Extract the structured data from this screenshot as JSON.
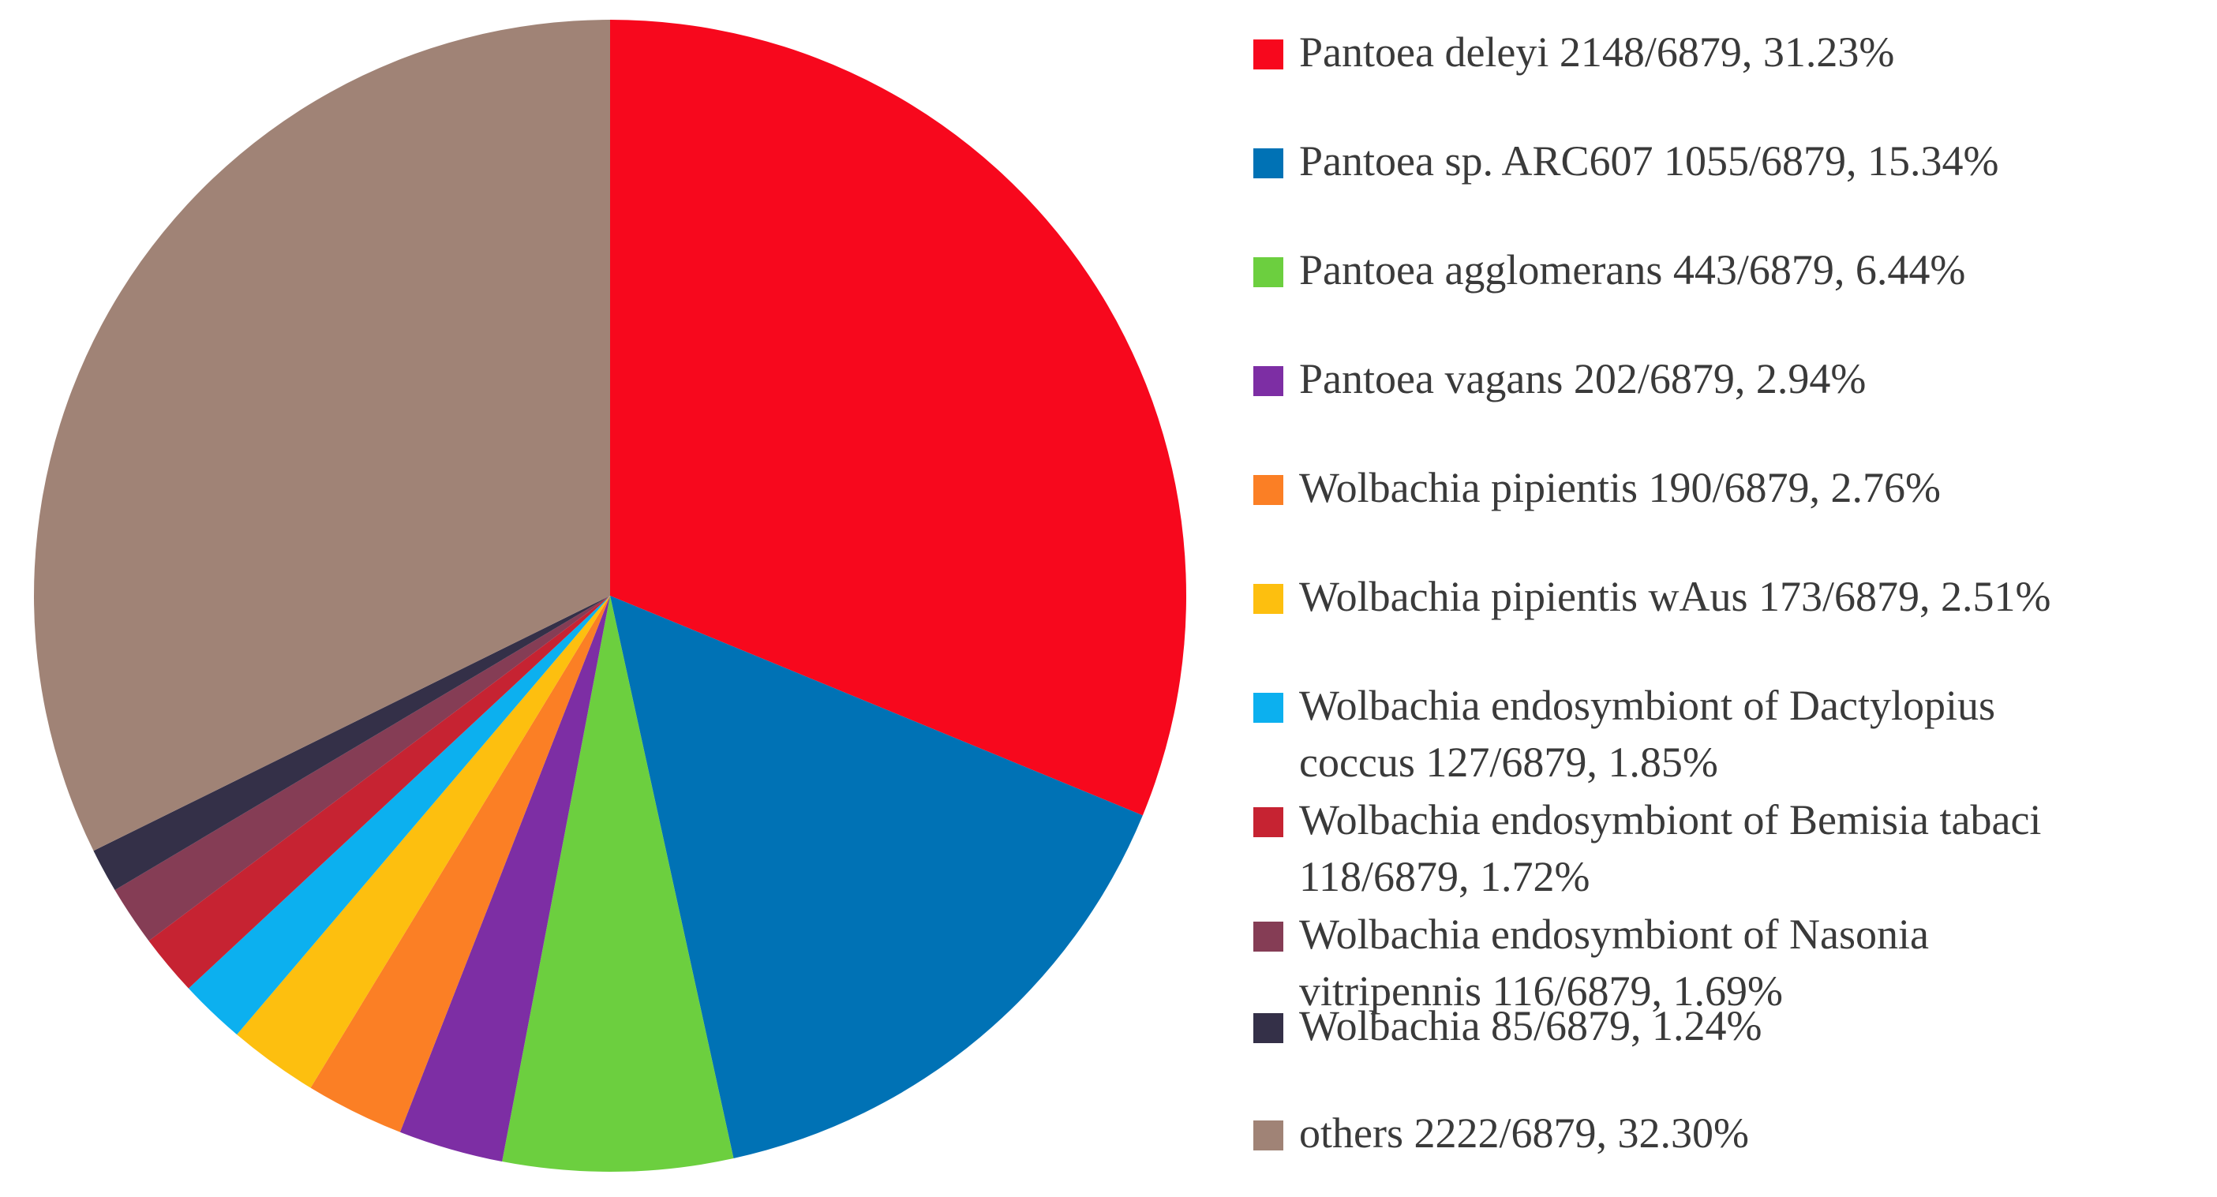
{
  "chart_data": {
    "type": "pie",
    "total": 6879,
    "start_angle_deg": 0,
    "direction": "clockwise",
    "slices": [
      {
        "label": "Pantoea deleyi",
        "count": 2148,
        "percent": 31.23,
        "color": "#f7081d",
        "legend_lines": [
          "Pantoea deleyi 2148/6879, 31.23%"
        ]
      },
      {
        "label": "Pantoea sp. ARC607",
        "count": 1055,
        "percent": 15.34,
        "color": "#0072b5",
        "legend_lines": [
          "Pantoea sp. ARC607 1055/6879, 15.34%"
        ]
      },
      {
        "label": "Pantoea agglomerans",
        "count": 443,
        "percent": 6.44,
        "color": "#6ccf3f",
        "legend_lines": [
          "Pantoea agglomerans 443/6879, 6.44%"
        ]
      },
      {
        "label": "Pantoea vagans",
        "count": 202,
        "percent": 2.94,
        "color": "#7d2ea4",
        "legend_lines": [
          "Pantoea vagans 202/6879, 2.94%"
        ]
      },
      {
        "label": "Wolbachia pipientis",
        "count": 190,
        "percent": 2.76,
        "color": "#fb7f25",
        "legend_lines": [
          "Wolbachia pipientis 190/6879, 2.76%"
        ]
      },
      {
        "label": "Wolbachia pipientis wAus",
        "count": 173,
        "percent": 2.51,
        "color": "#fdbf0f",
        "legend_lines": [
          "Wolbachia pipientis wAus 173/6879, 2.51%"
        ]
      },
      {
        "label": "Wolbachia endosymbiont of Dactylopius coccus",
        "count": 127,
        "percent": 1.85,
        "color": "#0cb0ef",
        "legend_lines": [
          "Wolbachia endosymbiont of Dactylopius",
          "coccus 127/6879, 1.85%"
        ]
      },
      {
        "label": "Wolbachia endosymbiont of Bemisia tabaci",
        "count": 118,
        "percent": 1.72,
        "color": "#c62332",
        "legend_lines": [
          "Wolbachia endosymbiont of Bemisia tabaci",
          "118/6879, 1.72%"
        ]
      },
      {
        "label": "Wolbachia endosymbiont of Nasonia vitripennis",
        "count": 116,
        "percent": 1.69,
        "color": "#853d55",
        "legend_lines": [
          "Wolbachia endosymbiont of Nasonia",
          "vitripennis 116/6879, 1.69%"
        ]
      },
      {
        "label": "Wolbachia",
        "count": 85,
        "percent": 1.24,
        "color": "#343048",
        "legend_lines": [
          "Wolbachia 85/6879, 1.24%"
        ]
      },
      {
        "label": "others",
        "count": 2222,
        "percent": 32.3,
        "color": "#a08376",
        "legend_lines": [
          "others 2222/6879, 32.30%"
        ]
      }
    ]
  }
}
